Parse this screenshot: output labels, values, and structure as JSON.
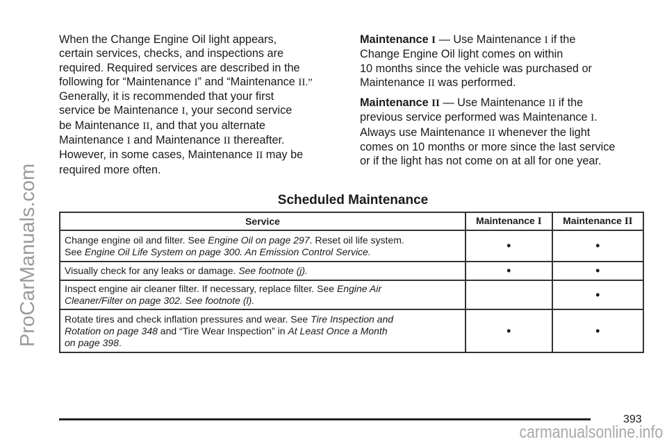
{
  "left_column": [
    [
      [
        [
          "When the Change Engine Oil light appears,",
          "n"
        ]
      ],
      [
        [
          "certain services, checks, and inspections are",
          "n"
        ]
      ],
      [
        [
          "required. Required services are described in the",
          "n"
        ]
      ],
      [
        [
          "following for “Maintenance ",
          "n"
        ],
        [
          "I",
          "r"
        ],
        [
          "” and “Maintenance ",
          "n"
        ],
        [
          "II",
          "r"
        ],
        [
          ".”",
          "r"
        ]
      ],
      [
        [
          "Generally, it is recommended that your first",
          "n"
        ]
      ],
      [
        [
          "service be Maintenance ",
          "n"
        ],
        [
          "I",
          "r"
        ],
        [
          ", your second service",
          "n"
        ]
      ],
      [
        [
          "be Maintenance ",
          "n"
        ],
        [
          "II",
          "r"
        ],
        [
          ", and that you alternate",
          "n"
        ]
      ],
      [
        [
          "Maintenance ",
          "n"
        ],
        [
          "I",
          "r"
        ],
        [
          " and Maintenance ",
          "n"
        ],
        [
          "II",
          "r"
        ],
        [
          " thereafter.",
          "n"
        ]
      ],
      [
        [
          "However, in some cases, Maintenance ",
          "n"
        ],
        [
          "II",
          "r"
        ],
        [
          " may be",
          "n"
        ]
      ],
      [
        [
          "required more often.",
          "n"
        ]
      ]
    ]
  ],
  "right_column": [
    [
      [
        [
          "Maintenance ",
          "b"
        ],
        [
          "I",
          "rb"
        ],
        [
          " — Use Maintenance ",
          "n"
        ],
        [
          "I",
          "r"
        ],
        [
          " if the",
          "n"
        ]
      ],
      [
        [
          "Change Engine Oil light comes on within",
          "n"
        ]
      ],
      [
        [
          "10 months since the vehicle was purchased or",
          "n"
        ]
      ],
      [
        [
          "Maintenance ",
          "n"
        ],
        [
          "II",
          "r"
        ],
        [
          " was performed.",
          "n"
        ]
      ]
    ],
    [
      [
        [
          "Maintenance ",
          "b"
        ],
        [
          "II",
          "rb"
        ],
        [
          " — Use Maintenance ",
          "n"
        ],
        [
          "II",
          "r"
        ],
        [
          " if the",
          "n"
        ]
      ],
      [
        [
          "previous service performed was Maintenance ",
          "n"
        ],
        [
          "I",
          "r"
        ],
        [
          ".",
          "n"
        ]
      ],
      [
        [
          "Always use Maintenance ",
          "n"
        ],
        [
          "II",
          "r"
        ],
        [
          " whenever the light",
          "n"
        ]
      ],
      [
        [
          "comes on 10 months or more since the last service",
          "n"
        ]
      ],
      [
        [
          "or if the light has not come on at all for one year.",
          "n"
        ]
      ]
    ]
  ],
  "section_heading": "Scheduled Maintenance",
  "table": {
    "headers": [
      [
        [
          "Service",
          "b"
        ]
      ],
      [
        [
          "Maintenance ",
          "b"
        ],
        [
          "I",
          "rb"
        ]
      ],
      [
        [
          "Maintenance ",
          "b"
        ],
        [
          "II",
          "rb"
        ]
      ]
    ],
    "rows": [
      {
        "service": [
          [
            "Change engine oil and filter. See ",
            "n"
          ],
          [
            "Engine Oil on page 297",
            "i"
          ],
          [
            ". Reset oil life system.",
            "n"
          ],
          [
            "\n",
            ""
          ],
          [
            "See ",
            "n"
          ],
          [
            "Engine Oil Life System on page 300. An Emission Control Service.",
            "i"
          ]
        ],
        "maint_1": "•",
        "maint_2": "•"
      },
      {
        "service": [
          [
            "Visually check for any leaks or damage. ",
            "n"
          ],
          [
            "See footnote (j).",
            "i"
          ]
        ],
        "maint_1": "•",
        "maint_2": "•"
      },
      {
        "service": [
          [
            "Inspect engine air cleaner filter. If necessary, replace filter. See ",
            "n"
          ],
          [
            "Engine Air",
            "i"
          ],
          [
            "\n",
            ""
          ],
          [
            "Cleaner/Filter on page 302. See footnote (l).",
            "i"
          ]
        ],
        "maint_1": "",
        "maint_2": "•"
      },
      {
        "service": [
          [
            "Rotate tires and check inflation pressures and wear. See ",
            "n"
          ],
          [
            "Tire Inspection and",
            "i"
          ],
          [
            "\n",
            ""
          ],
          [
            "Rotation on page 348",
            "i"
          ],
          [
            " and “Tire Wear Inspection” in ",
            "n"
          ],
          [
            "At Least Once a Month",
            "i"
          ],
          [
            "\n",
            ""
          ],
          [
            "on page 398",
            "i"
          ],
          [
            ".",
            "n"
          ]
        ],
        "maint_1": "•",
        "maint_2": "•"
      }
    ]
  },
  "page_number": "393",
  "watermark_side": "ProCarManuals.com",
  "watermark_bottom": "carmanualsonline.info"
}
